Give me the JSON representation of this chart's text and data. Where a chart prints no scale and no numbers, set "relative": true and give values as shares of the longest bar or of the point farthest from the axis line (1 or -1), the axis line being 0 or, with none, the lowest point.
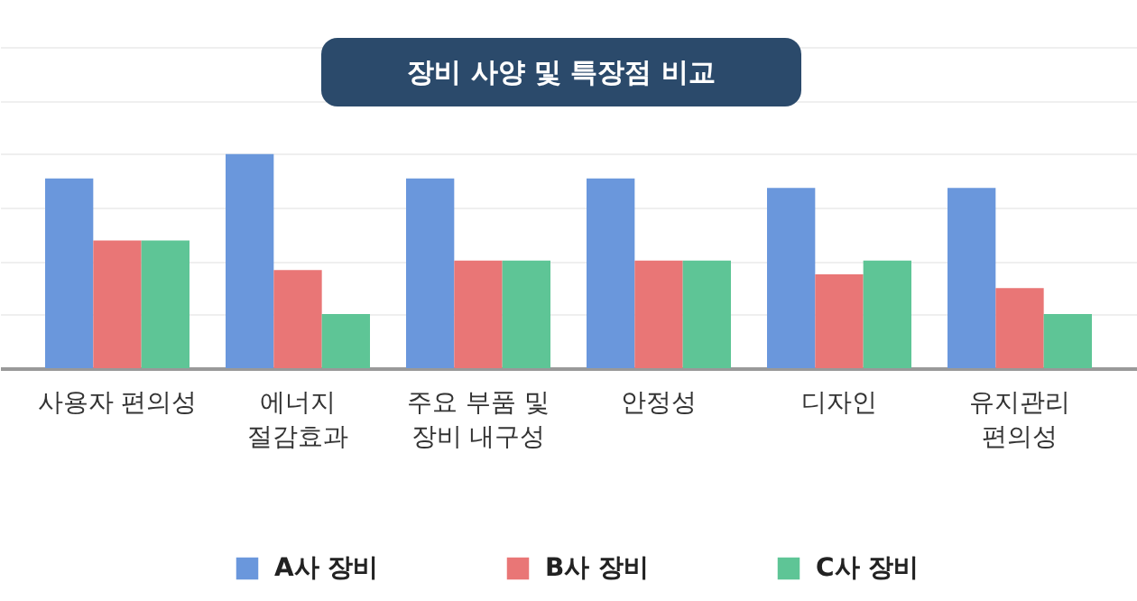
{
  "chart_data": {
    "type": "bar",
    "title": "장비 사양 및 특장점 비교",
    "relative": true,
    "grid": true,
    "legend": "bottom",
    "categories": [
      "사용자 편의성",
      "에너지\n절감효과",
      "주요 부품 및\n장비 내구성",
      "안정성",
      "디자인",
      "유지관리\n편의성"
    ],
    "series": [
      {
        "name": "A사 장비",
        "color": "#6a97dc",
        "values": [
          0.886,
          1,
          0.886,
          0.886,
          0.842,
          0.842
        ]
      },
      {
        "name": "B사 장비",
        "color": "#e97676",
        "values": [
          0.596,
          0.458,
          0.502,
          0.502,
          0.438,
          0.374
        ]
      },
      {
        "name": "C사 장비",
        "color": "#5ec596",
        "values": [
          0.596,
          0.253,
          0.502,
          0.502,
          0.502,
          0.253
        ]
      }
    ]
  }
}
